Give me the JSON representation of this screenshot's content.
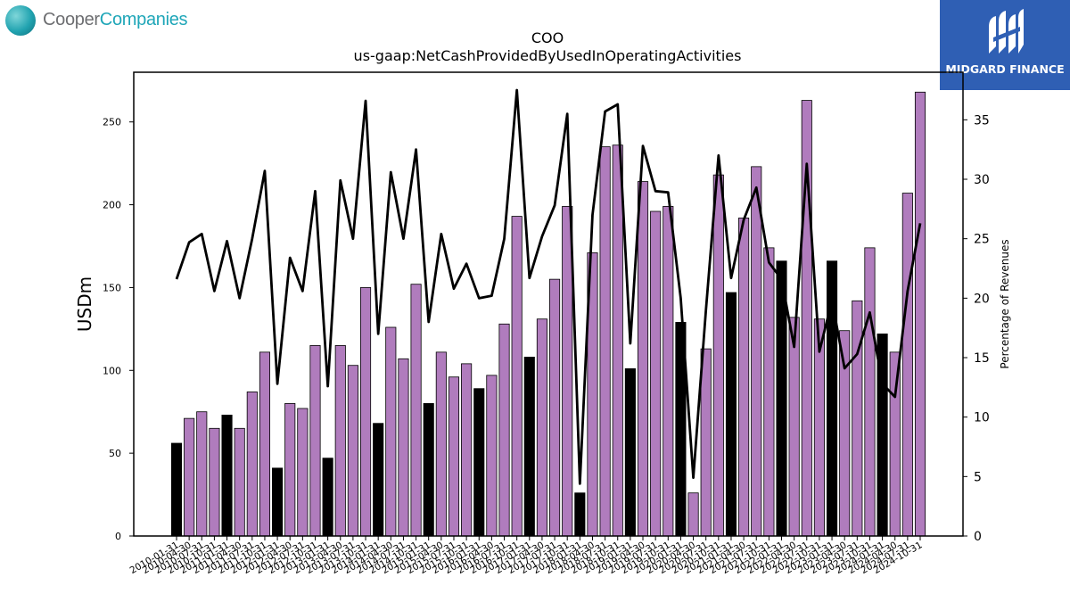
{
  "logos": {
    "left_part1": "Cooper",
    "left_part2": "Companies",
    "right_text": "MIDGARD FINANCE",
    "right_bg": "#2f5fb4"
  },
  "chart_data": {
    "type": "bar",
    "title": "COO",
    "subtitle": "us-gaap:NetCashProvidedByUsedInOperatingActivities",
    "ylabel": "USDm",
    "y2label": "Percentage of Revenues",
    "ylim": [
      0,
      280
    ],
    "y2lim": [
      0,
      39
    ],
    "yticks": [
      0,
      50,
      100,
      150,
      200,
      250
    ],
    "y2ticks": [
      0,
      5,
      10,
      15,
      20,
      25,
      30,
      35
    ],
    "categories": [
      "2010-01-31",
      "2010-04-30",
      "2010-07-31",
      "2010-10-31",
      "2011-01-31",
      "2011-04-30",
      "2011-07-31",
      "2011-10-31",
      "2012-01-31",
      "2012-04-30",
      "2012-07-31",
      "2012-10-31",
      "2013-01-31",
      "2013-04-30",
      "2013-07-31",
      "2013-10-31",
      "2014-01-31",
      "2014-04-30",
      "2014-07-31",
      "2014-10-31",
      "2015-01-31",
      "2015-04-30",
      "2015-07-31",
      "2015-10-31",
      "2016-01-31",
      "2016-04-30",
      "2016-07-31",
      "2016-10-31",
      "2017-01-31",
      "2017-04-30",
      "2017-07-31",
      "2017-10-31",
      "2018-01-31",
      "2018-04-30",
      "2018-07-31",
      "2018-10-31",
      "2019-01-31",
      "2019-04-30",
      "2019-07-31",
      "2019-10-31",
      "2020-01-31",
      "2020-04-30",
      "2020-07-31",
      "2020-10-31",
      "2021-01-31",
      "2021-04-30",
      "2021-07-31",
      "2021-10-31",
      "2022-01-31",
      "2022-04-30",
      "2022-07-31",
      "2022-10-31",
      "2023-01-31",
      "2023-04-30",
      "2023-07-31",
      "2023-10-31",
      "2024-01-31",
      "2024-04-30",
      "2024-07-31",
      "2024-10-31"
    ],
    "series": [
      {
        "kind": "bar",
        "values": [
          56,
          71,
          75,
          65,
          73,
          65,
          87,
          111,
          41,
          80,
          77,
          115,
          47,
          115,
          103,
          150,
          68,
          126,
          107,
          152,
          80,
          111,
          96,
          104,
          89,
          97,
          128,
          193,
          108,
          131,
          155,
          199,
          26,
          171,
          235,
          236,
          101,
          214,
          196,
          199,
          129,
          26,
          113,
          218,
          147,
          192,
          223,
          174,
          166,
          132,
          263,
          131,
          166,
          124,
          142,
          174,
          122,
          111,
          207,
          268
        ],
        "first_quarter_color": "#000000",
        "other_color": "#b07cbd"
      },
      {
        "kind": "line",
        "axis": "right",
        "color": "#000000",
        "values": [
          21.6,
          24.7,
          25.4,
          20.6,
          24.8,
          20.0,
          25.0,
          30.7,
          12.8,
          23.4,
          20.6,
          29.0,
          12.6,
          29.9,
          25.0,
          36.6,
          17.0,
          30.6,
          25.0,
          32.5,
          18.0,
          25.4,
          20.8,
          22.9,
          20.0,
          20.2,
          25.0,
          37.5,
          21.7,
          25.2,
          27.8,
          35.5,
          4.4,
          27.0,
          35.7,
          36.3,
          16.2,
          32.8,
          29.0,
          28.9,
          20.0,
          4.9,
          19.0,
          32.0,
          21.7,
          26.6,
          29.3,
          23.0,
          21.6,
          15.9,
          31.3,
          15.5,
          19.8,
          14.1,
          15.3,
          18.8,
          12.8,
          11.7,
          20.6,
          26.3
        ]
      }
    ]
  }
}
